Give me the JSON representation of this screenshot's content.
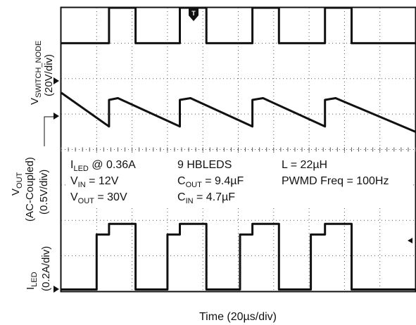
{
  "chart_data": {
    "type": "line",
    "title": "",
    "xlabel": "Time (20µs/div)",
    "grid": true,
    "x_divisions": 10,
    "y_divisions": 8,
    "trigger_marker": "T",
    "channels": [
      {
        "name": "switch-node",
        "label_main": "V",
        "label_sub": "SWITCH_NODE",
        "scale": "(20V/div)"
      },
      {
        "name": "vout",
        "label_main": "V",
        "label_sub": "OUT",
        "scale_line1": "(AC-Coupled)",
        "scale_line2": "(0.5V/div)"
      },
      {
        "name": "iled",
        "label_main": "I",
        "label_sub": "LED",
        "scale": "(0.2A/div)"
      }
    ],
    "series": [
      {
        "name": "V_SWITCH_NODE",
        "x_div": [
          0,
          1.35,
          1.35,
          2.1,
          2.1,
          3.35,
          3.35,
          4.1,
          4.1,
          5.4,
          5.4,
          6.15,
          6.15,
          7.45,
          7.45,
          8.2,
          8.2,
          10
        ],
        "y_div": [
          7.0,
          7.0,
          8.0,
          8.0,
          7.0,
          7.0,
          8.0,
          8.0,
          7.0,
          7.0,
          8.0,
          8.0,
          7.0,
          7.0,
          8.0,
          8.0,
          7.0,
          7.0
        ]
      },
      {
        "name": "V_OUT",
        "x_div": [
          0,
          1.35,
          1.35,
          1.6,
          3.35,
          3.35,
          3.65,
          5.4,
          5.4,
          5.7,
          7.45,
          7.45,
          7.75,
          10
        ],
        "y_div": [
          5.6,
          4.65,
          5.4,
          5.45,
          4.65,
          5.4,
          5.45,
          4.65,
          5.4,
          5.45,
          4.65,
          5.4,
          5.45,
          4.5
        ]
      },
      {
        "name": "I_LED",
        "x_div": [
          0,
          1.0,
          1.0,
          1.35,
          1.35,
          2.1,
          2.1,
          3.0,
          3.0,
          3.35,
          3.35,
          4.1,
          4.1,
          5.05,
          5.05,
          5.4,
          5.4,
          6.15,
          6.15,
          7.05,
          7.05,
          7.45,
          7.45,
          8.2,
          8.2,
          10
        ],
        "y_div": [
          0.05,
          0.05,
          1.6,
          1.6,
          1.9,
          1.9,
          0.05,
          0.05,
          1.6,
          1.6,
          1.9,
          1.9,
          0.05,
          0.05,
          1.6,
          1.6,
          1.9,
          1.9,
          0.05,
          0.05,
          1.6,
          1.6,
          1.9,
          1.9,
          0.05,
          0.05
        ]
      }
    ],
    "annotations": [
      {
        "name": "iled-avg",
        "main": "I",
        "sub": "LED",
        "rest": " @ 0.36A"
      },
      {
        "name": "vin",
        "main": "V",
        "sub": "IN",
        "rest": " = 12V"
      },
      {
        "name": "vout-val",
        "main": "V",
        "sub": "OUT",
        "rest": " = 30V"
      },
      {
        "name": "hbleds",
        "main": "9 HBLEDS",
        "sub": "",
        "rest": ""
      },
      {
        "name": "cout",
        "main": "C",
        "sub": "OUT",
        "rest": " = 9.4µF"
      },
      {
        "name": "cin",
        "main": "C",
        "sub": "IN",
        "rest": " = 4.7µF"
      },
      {
        "name": "inductor",
        "main": "L = 22µH",
        "sub": "",
        "rest": ""
      },
      {
        "name": "pwmd-freq",
        "main": "PWMD Freq = 100Hz",
        "sub": "",
        "rest": ""
      }
    ]
  }
}
